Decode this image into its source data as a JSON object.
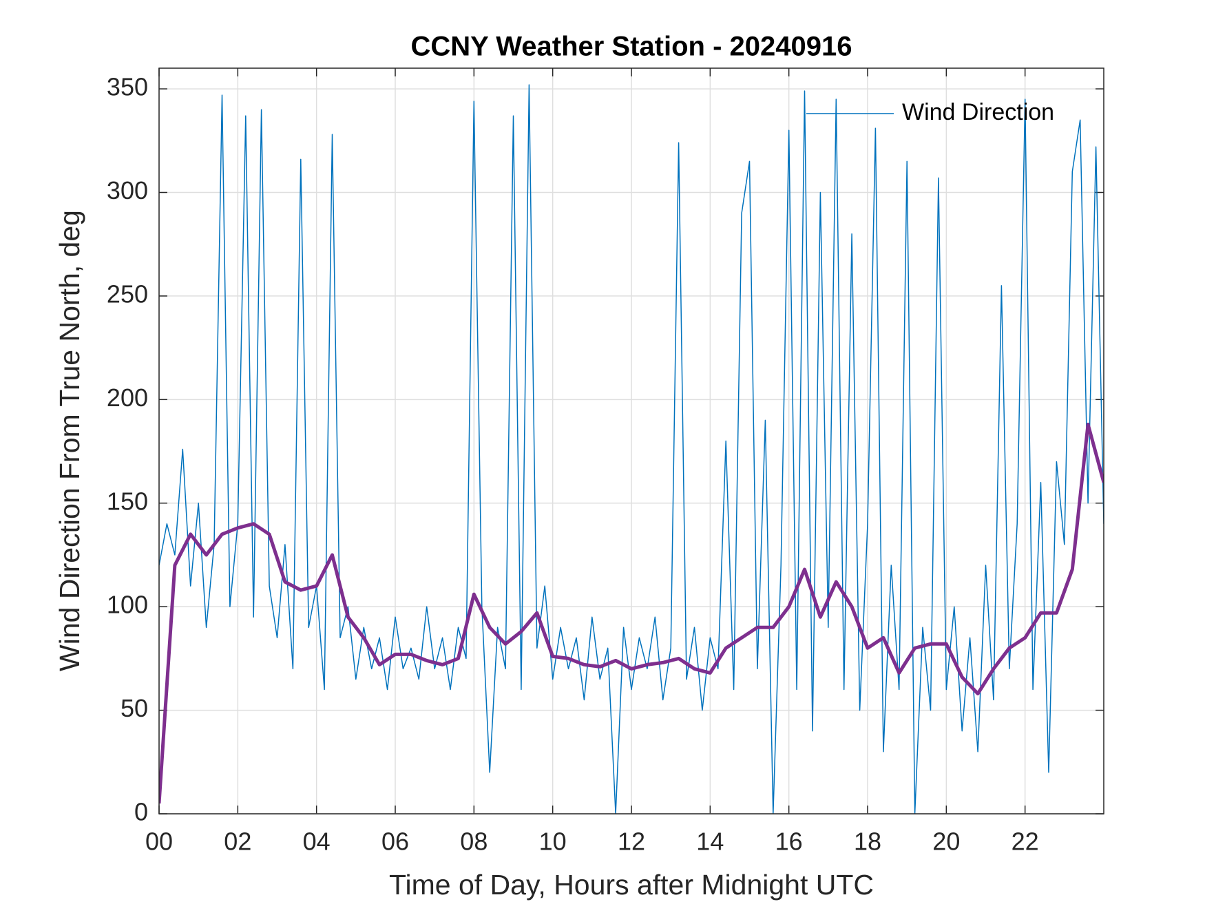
{
  "chart_data": {
    "type": "line",
    "title": "CCNY Weather Station - 20240916",
    "xlabel": "Time of Day, Hours after Midnight UTC",
    "ylabel": "Wind Direction From True North, deg",
    "xlim": [
      0,
      24
    ],
    "ylim": [
      0,
      360
    ],
    "xticks": [
      {
        "value": 0,
        "label": "00"
      },
      {
        "value": 2,
        "label": "02"
      },
      {
        "value": 4,
        "label": "04"
      },
      {
        "value": 6,
        "label": "06"
      },
      {
        "value": 8,
        "label": "08"
      },
      {
        "value": 10,
        "label": "10"
      },
      {
        "value": 12,
        "label": "12"
      },
      {
        "value": 14,
        "label": "14"
      },
      {
        "value": 16,
        "label": "16"
      },
      {
        "value": 18,
        "label": "18"
      },
      {
        "value": 20,
        "label": "20"
      },
      {
        "value": 22,
        "label": "22"
      }
    ],
    "yticks": [
      0,
      50,
      100,
      150,
      200,
      250,
      300,
      350
    ],
    "grid": true,
    "legend": "northeast",
    "series": [
      {
        "name": "Wind Direction",
        "color": "#0072BD",
        "width": 1.5,
        "x": [
          0,
          0.2,
          0.4,
          0.6,
          0.8,
          1.0,
          1.2,
          1.4,
          1.6,
          1.8,
          2.0,
          2.2,
          2.4,
          2.6,
          2.8,
          3.0,
          3.2,
          3.4,
          3.6,
          3.8,
          4.0,
          4.2,
          4.4,
          4.6,
          4.8,
          5.0,
          5.2,
          5.4,
          5.6,
          5.8,
          6.0,
          6.2,
          6.4,
          6.6,
          6.8,
          7.0,
          7.2,
          7.4,
          7.6,
          7.8,
          8.0,
          8.2,
          8.4,
          8.6,
          8.8,
          9.0,
          9.2,
          9.4,
          9.6,
          9.8,
          10.0,
          10.2,
          10.4,
          10.6,
          10.8,
          11.0,
          11.2,
          11.4,
          11.6,
          11.8,
          12.0,
          12.2,
          12.4,
          12.6,
          12.8,
          13.0,
          13.2,
          13.4,
          13.6,
          13.8,
          14.0,
          14.2,
          14.4,
          14.6,
          14.8,
          15.0,
          15.2,
          15.4,
          15.6,
          15.8,
          16.0,
          16.2,
          16.4,
          16.6,
          16.8,
          17.0,
          17.2,
          17.4,
          17.6,
          17.8,
          18.0,
          18.2,
          18.4,
          18.6,
          18.8,
          19.0,
          19.2,
          19.4,
          19.6,
          19.8,
          20.0,
          20.2,
          20.4,
          20.6,
          20.8,
          21.0,
          21.2,
          21.4,
          21.6,
          21.8,
          22.0,
          22.2,
          22.4,
          22.6,
          22.8,
          23.0,
          23.2,
          23.4,
          23.6,
          23.8,
          24.0
        ],
        "values": [
          120,
          140,
          125,
          176,
          110,
          150,
          90,
          130,
          347,
          100,
          140,
          337,
          95,
          340,
          110,
          85,
          130,
          70,
          316,
          90,
          110,
          60,
          328,
          85,
          100,
          65,
          90,
          70,
          85,
          60,
          95,
          70,
          80,
          65,
          100,
          70,
          85,
          60,
          90,
          75,
          344,
          100,
          20,
          90,
          70,
          337,
          60,
          352,
          80,
          110,
          65,
          90,
          70,
          85,
          55,
          95,
          65,
          80,
          0,
          90,
          60,
          85,
          70,
          95,
          55,
          80,
          324,
          65,
          90,
          50,
          85,
          70,
          180,
          60,
          290,
          315,
          70,
          190,
          0,
          120,
          330,
          60,
          349,
          40,
          300,
          90,
          345,
          60,
          280,
          50,
          140,
          331,
          30,
          120,
          60,
          315,
          0,
          90,
          50,
          307,
          60,
          100,
          40,
          85,
          30,
          120,
          55,
          255,
          70,
          140,
          345,
          60,
          160,
          20,
          170,
          130,
          310,
          335,
          150,
          322,
          140
        ]
      },
      {
        "color": "#7E2F8E",
        "width": 5,
        "x": [
          0,
          0.4,
          0.8,
          1.2,
          1.6,
          2.0,
          2.4,
          2.8,
          3.2,
          3.6,
          4.0,
          4.4,
          4.8,
          5.2,
          5.6,
          6.0,
          6.4,
          6.8,
          7.2,
          7.6,
          8.0,
          8.4,
          8.8,
          9.2,
          9.6,
          10.0,
          10.4,
          10.8,
          11.2,
          11.6,
          12.0,
          12.4,
          12.8,
          13.2,
          13.6,
          14.0,
          14.4,
          14.8,
          15.2,
          15.6,
          16.0,
          16.4,
          16.8,
          17.2,
          17.6,
          18.0,
          18.4,
          18.8,
          19.2,
          19.6,
          20.0,
          20.4,
          20.8,
          21.2,
          21.6,
          22.0,
          22.4,
          22.8,
          23.2,
          23.6,
          24.0
        ],
        "values": [
          5,
          120,
          135,
          125,
          135,
          138,
          140,
          135,
          112,
          108,
          110,
          125,
          95,
          85,
          72,
          77,
          77,
          74,
          72,
          75,
          106,
          90,
          82,
          88,
          97,
          76,
          75,
          72,
          71,
          74,
          70,
          72,
          73,
          75,
          70,
          68,
          80,
          85,
          90,
          90,
          100,
          118,
          95,
          112,
          100,
          80,
          85,
          68,
          80,
          82,
          82,
          66,
          58,
          70,
          80,
          85,
          97,
          97,
          118,
          188,
          160
        ]
      }
    ]
  }
}
